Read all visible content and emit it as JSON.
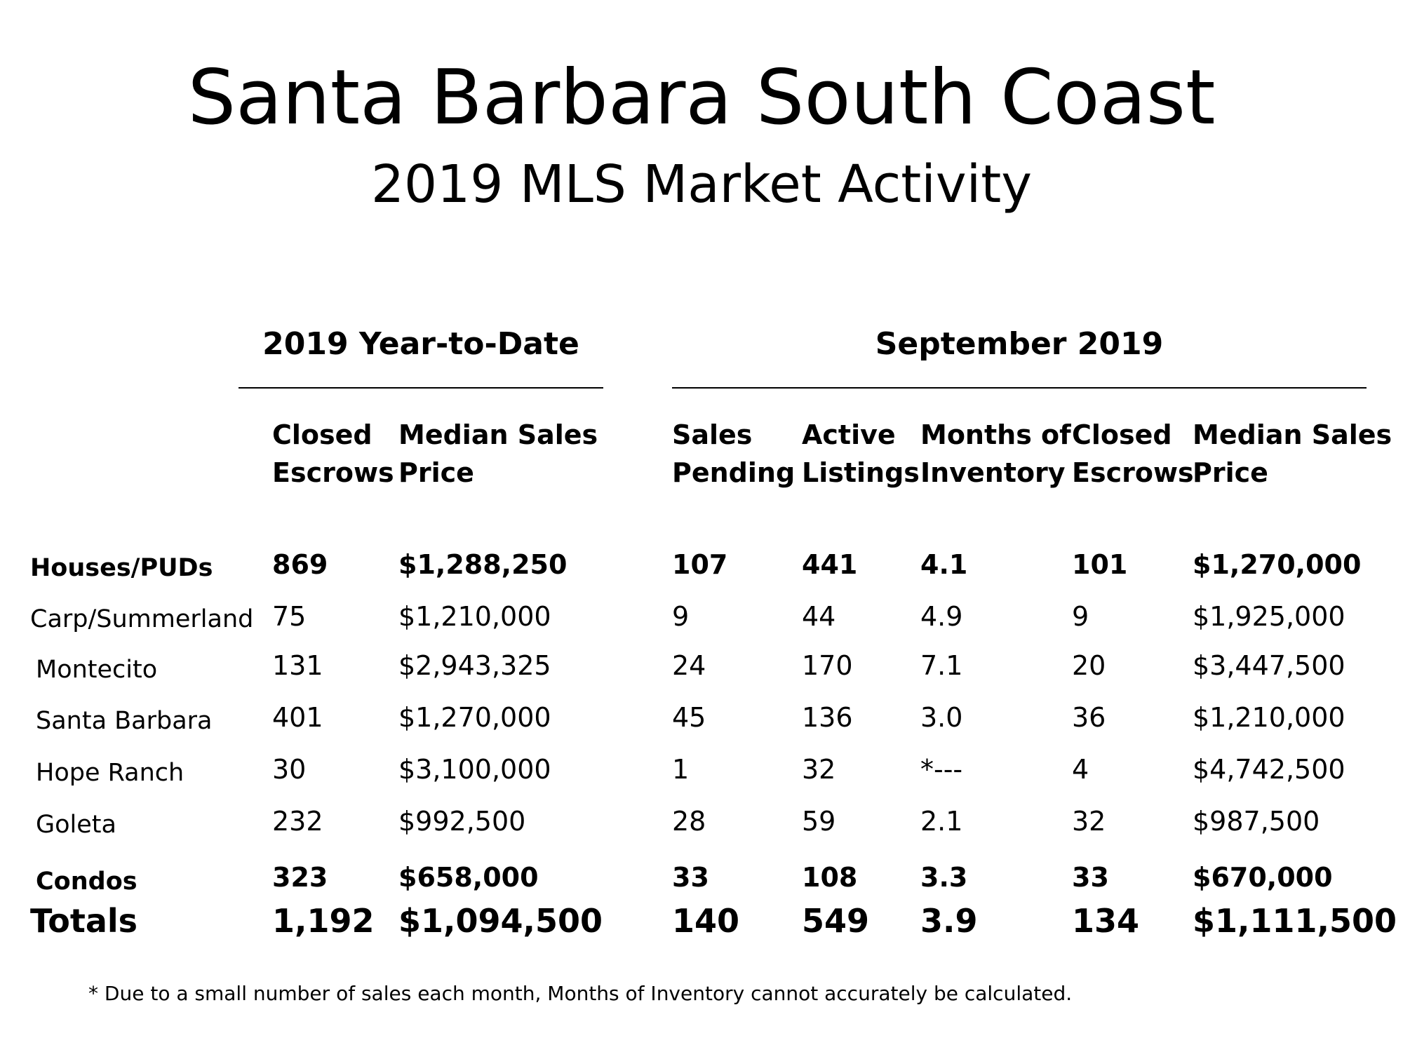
{
  "title": "Santa Barbara South Coast",
  "subtitle": "2019 MLS Market Activity",
  "groups": {
    "ytd": "2019 Year-to-Date",
    "month": "September 2019"
  },
  "columns": [
    [
      "Closed",
      "Escrows"
    ],
    [
      "Median Sales",
      "Price"
    ],
    [
      "Sales",
      "Pending"
    ],
    [
      "Active",
      "Listings"
    ],
    [
      "Months of",
      "Inventory"
    ],
    [
      "Closed",
      "Escrows"
    ],
    [
      "Median Sales",
      "Price"
    ]
  ],
  "rows": [
    {
      "label": "Houses/PUDs",
      "cells": [
        "869",
        "$1,288,250",
        "107",
        "441",
        "4.1",
        "101",
        "$1,270,000"
      ]
    },
    {
      "label": "Carp/Summerland",
      "cells": [
        "75",
        "$1,210,000",
        "9",
        "44",
        "4.9",
        "9",
        "$1,925,000"
      ]
    },
    {
      "label": "Montecito",
      "cells": [
        "131",
        "$2,943,325",
        "24",
        "170",
        "7.1",
        "20",
        "$3,447,500"
      ]
    },
    {
      "label": "Santa Barbara",
      "cells": [
        "401",
        "$1,270,000",
        "45",
        "136",
        "3.0",
        "36",
        "$1,210,000"
      ]
    },
    {
      "label": "Hope Ranch",
      "cells": [
        "30",
        "$3,100,000",
        "1",
        "32",
        "*---",
        "4",
        "$4,742,500"
      ]
    },
    {
      "label": "Goleta",
      "cells": [
        "232",
        "$992,500",
        "28",
        "59",
        "2.1",
        "32",
        "$987,500"
      ]
    },
    {
      "label": "Condos",
      "cells": [
        "323",
        "$658,000",
        "33",
        "108",
        "3.3",
        "33",
        "$670,000"
      ]
    },
    {
      "label": "Totals",
      "cells": [
        "1,192",
        "$1,094,500",
        "140",
        "549",
        "3.9",
        "134",
        "$1,111,500"
      ]
    }
  ],
  "footnote": "* Due to a small number of sales each month, Months of Inventory cannot accurately be calculated."
}
